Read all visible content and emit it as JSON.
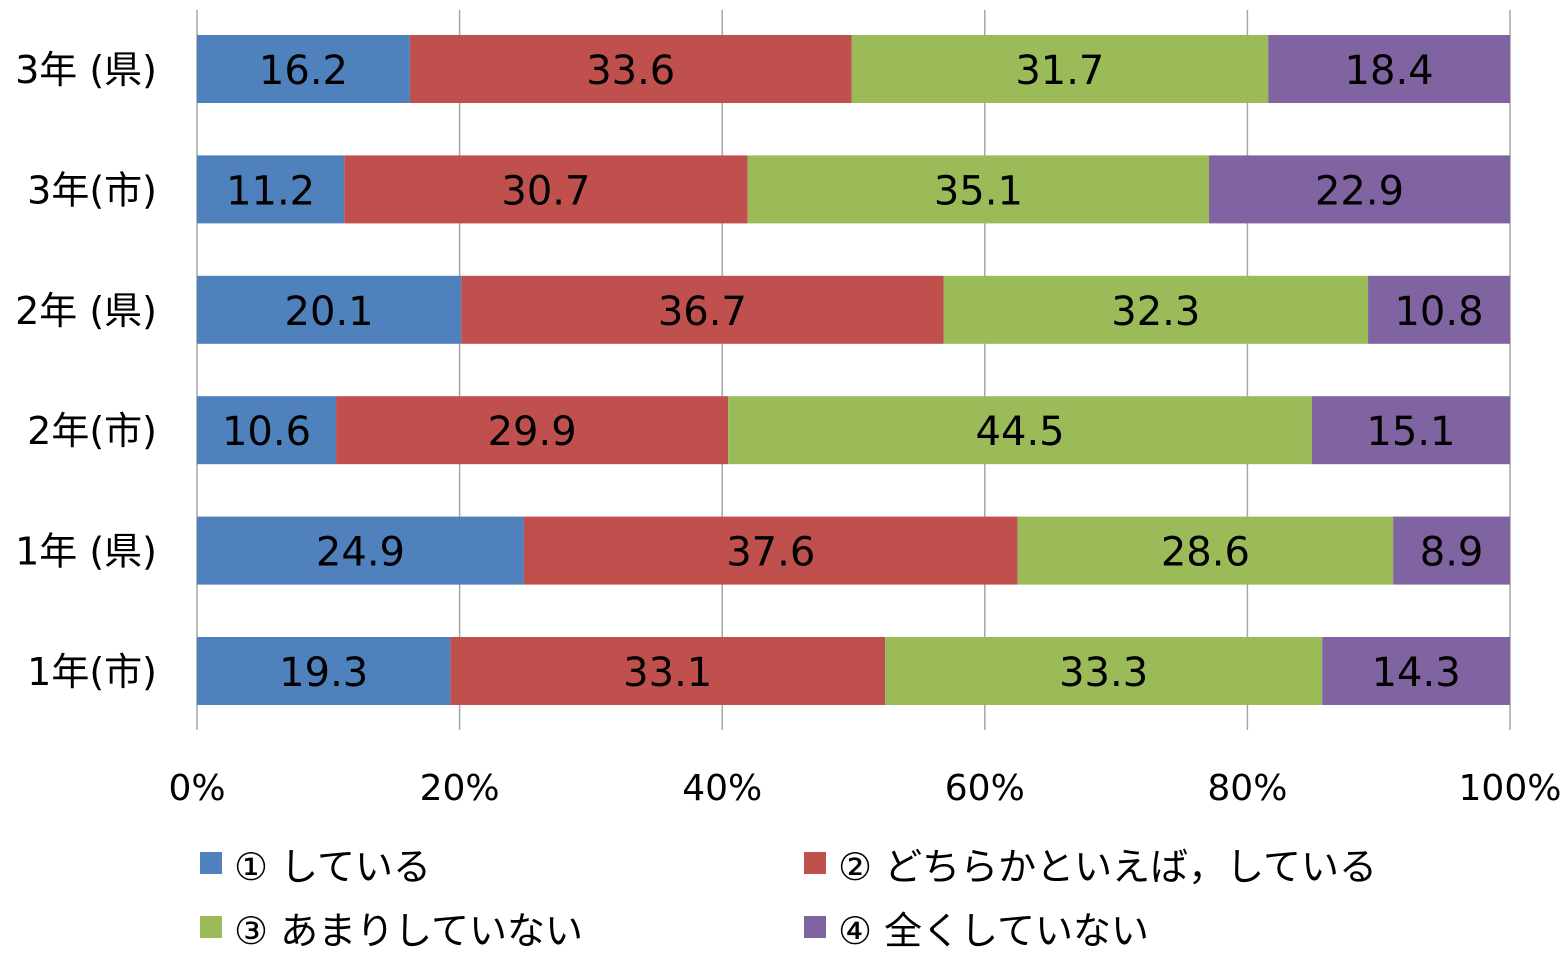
{
  "chart_data": {
    "type": "bar",
    "orientation": "horizontal",
    "stacked": "percent",
    "categories": [
      "3年 (県)",
      "3年(市)",
      "2年 (県)",
      "2年(市)",
      "1年 (県)",
      "1年(市)"
    ],
    "series": [
      {
        "name": "① している",
        "color": "#4f81bd",
        "values": [
          16.2,
          11.2,
          20.1,
          10.6,
          24.9,
          19.3
        ]
      },
      {
        "name": "② どちらかといえば，している",
        "color": "#c0504d",
        "values": [
          33.6,
          30.7,
          36.7,
          29.9,
          37.6,
          33.1
        ]
      },
      {
        "name": "③ あまりしていない",
        "color": "#9bbb59",
        "values": [
          31.7,
          35.1,
          32.3,
          44.5,
          28.6,
          33.3
        ]
      },
      {
        "name": "④ 全くしていない",
        "color": "#8064a2",
        "values": [
          18.4,
          22.9,
          10.8,
          15.1,
          8.9,
          14.3
        ]
      }
    ],
    "x_ticks": [
      "0%",
      "20%",
      "40%",
      "60%",
      "80%",
      "100%"
    ],
    "xlim": [
      0,
      100
    ],
    "grid": "vertical",
    "legend_position": "bottom",
    "title": "",
    "xlabel": "",
    "ylabel": ""
  }
}
